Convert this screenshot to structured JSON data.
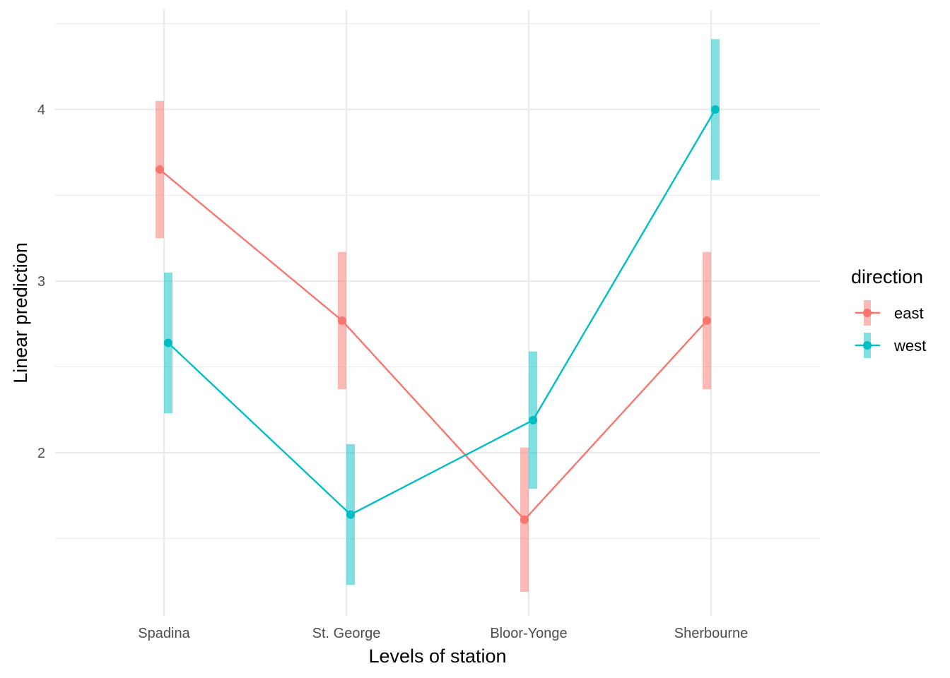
{
  "chart_data": {
    "type": "line",
    "xlabel": "Levels of station",
    "ylabel": "Linear prediction",
    "categories": [
      "Spadina",
      "St. George",
      "Bloor-Yonge",
      "Sherbourne"
    ],
    "y_ticks": [
      2,
      3,
      4
    ],
    "ylim": [
      1.05,
      4.58
    ],
    "grid": true,
    "legend": {
      "title": "direction",
      "position": "right"
    },
    "series": [
      {
        "name": "east",
        "color": "#F8766D",
        "values": [
          3.65,
          2.77,
          1.61,
          2.77
        ],
        "lower": [
          3.25,
          2.37,
          1.19,
          2.37
        ],
        "upper": [
          4.05,
          3.17,
          2.03,
          3.17
        ]
      },
      {
        "name": "west",
        "color": "#00BFC4",
        "values": [
          2.64,
          1.64,
          2.19,
          4.0
        ],
        "lower": [
          2.23,
          1.23,
          1.79,
          3.59
        ],
        "upper": [
          3.05,
          2.05,
          2.59,
          4.41
        ]
      }
    ]
  }
}
